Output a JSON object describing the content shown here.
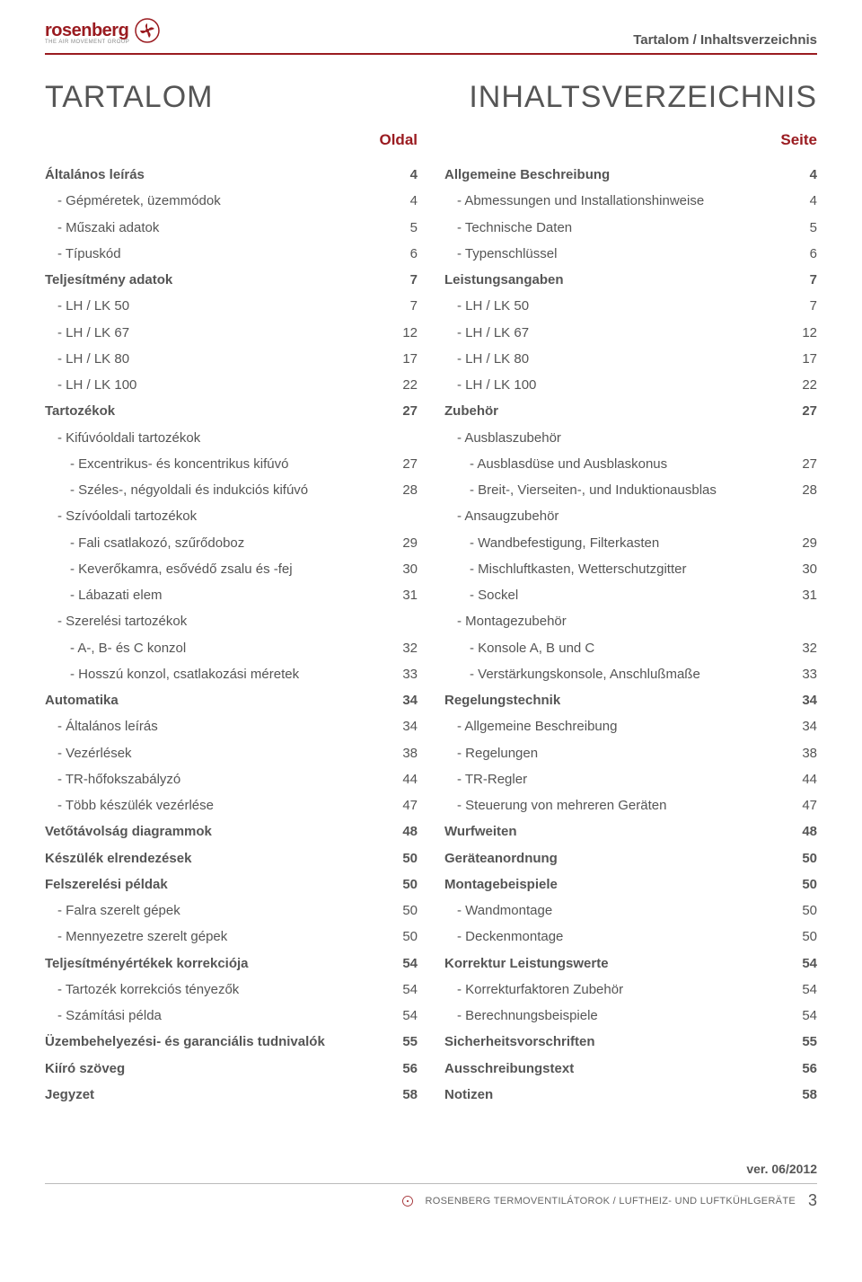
{
  "header": {
    "logo_text": "rosenberg",
    "logo_tag": "THE AIR MOVEMENT GROUP",
    "right": "Tartalom / Inhaltsverzeichnis"
  },
  "titles": {
    "left": "TARTALOM",
    "right": "INHALTSVERZEICHNIS"
  },
  "col_headers": {
    "left": "Oldal",
    "right": "Seite"
  },
  "left_rows": [
    {
      "label": "Általános leírás",
      "page": "4",
      "bold": true,
      "indent": 0
    },
    {
      "label": "- Gépméretek, üzemmódok",
      "page": "4",
      "bold": false,
      "indent": 1
    },
    {
      "label": "- Műszaki adatok",
      "page": "5",
      "bold": false,
      "indent": 1
    },
    {
      "label": "- Típuskód",
      "page": "6",
      "bold": false,
      "indent": 1
    },
    {
      "label": "Teljesítmény adatok",
      "page": "7",
      "bold": true,
      "indent": 0
    },
    {
      "label": "- LH / LK 50",
      "page": "7",
      "bold": false,
      "indent": 1
    },
    {
      "label": "- LH / LK 67",
      "page": "12",
      "bold": false,
      "indent": 1
    },
    {
      "label": "- LH / LK 80",
      "page": "17",
      "bold": false,
      "indent": 1
    },
    {
      "label": "- LH / LK 100",
      "page": "22",
      "bold": false,
      "indent": 1
    },
    {
      "label": "Tartozékok",
      "page": "27",
      "bold": true,
      "indent": 0
    },
    {
      "label": "- Kifúvóoldali tartozékok",
      "page": "",
      "bold": false,
      "indent": 1
    },
    {
      "label": "- Excentrikus- és koncentrikus kifúvó",
      "page": "27",
      "bold": false,
      "indent": 2
    },
    {
      "label": "- Széles-, négyoldali és indukciós kifúvó",
      "page": "28",
      "bold": false,
      "indent": 2
    },
    {
      "label": "- Szívóoldali tartozékok",
      "page": "",
      "bold": false,
      "indent": 1
    },
    {
      "label": "- Fali csatlakozó, szűrődoboz",
      "page": "29",
      "bold": false,
      "indent": 2
    },
    {
      "label": "- Keverőkamra, esővédő zsalu és -fej",
      "page": "30",
      "bold": false,
      "indent": 2
    },
    {
      "label": "- Lábazati elem",
      "page": "31",
      "bold": false,
      "indent": 2
    },
    {
      "label": "- Szerelési tartozékok",
      "page": "",
      "bold": false,
      "indent": 1
    },
    {
      "label": "- A-, B- és C konzol",
      "page": "32",
      "bold": false,
      "indent": 2
    },
    {
      "label": "- Hosszú konzol, csatlakozási méretek",
      "page": "33",
      "bold": false,
      "indent": 2
    },
    {
      "label": "Automatika",
      "page": "34",
      "bold": true,
      "indent": 0
    },
    {
      "label": "- Általános leírás",
      "page": "34",
      "bold": false,
      "indent": 1
    },
    {
      "label": "- Vezérlések",
      "page": "38",
      "bold": false,
      "indent": 1
    },
    {
      "label": "- TR-hőfokszabályzó",
      "page": "44",
      "bold": false,
      "indent": 1
    },
    {
      "label": "- Több készülék vezérlése",
      "page": "47",
      "bold": false,
      "indent": 1
    },
    {
      "label": "Vetőtávolság diagrammok",
      "page": "48",
      "bold": true,
      "indent": 0
    },
    {
      "label": "Készülék elrendezések",
      "page": "50",
      "bold": true,
      "indent": 0
    },
    {
      "label": "Felszerelési példak",
      "page": "50",
      "bold": true,
      "indent": 0
    },
    {
      "label": "- Falra szerelt gépek",
      "page": "50",
      "bold": false,
      "indent": 1
    },
    {
      "label": "- Mennyezetre szerelt gépek",
      "page": "50",
      "bold": false,
      "indent": 1
    },
    {
      "label": "Teljesítményértékek korrekciója",
      "page": "54",
      "bold": true,
      "indent": 0
    },
    {
      "label": "- Tartozék korrekciós tényezők",
      "page": "54",
      "bold": false,
      "indent": 1
    },
    {
      "label": "- Számítási példa",
      "page": "54",
      "bold": false,
      "indent": 1
    },
    {
      "label": "Üzembehelyezési- és garanciális tudnivalók",
      "page": "55",
      "bold": true,
      "indent": 0
    },
    {
      "label": "Kiíró szöveg",
      "page": "56",
      "bold": true,
      "indent": 0
    },
    {
      "label": "Jegyzet",
      "page": "58",
      "bold": true,
      "indent": 0
    }
  ],
  "right_rows": [
    {
      "label": "Allgemeine Beschreibung",
      "page": "4",
      "bold": true,
      "indent": 0
    },
    {
      "label": "- Abmessungen und Installationshinweise",
      "page": "4",
      "bold": false,
      "indent": 1
    },
    {
      "label": "- Technische Daten",
      "page": "5",
      "bold": false,
      "indent": 1
    },
    {
      "label": "- Typenschlüssel",
      "page": "6",
      "bold": false,
      "indent": 1
    },
    {
      "label": "Leistungsangaben",
      "page": "7",
      "bold": true,
      "indent": 0
    },
    {
      "label": "- LH / LK 50",
      "page": "7",
      "bold": false,
      "indent": 1
    },
    {
      "label": "- LH / LK 67",
      "page": "12",
      "bold": false,
      "indent": 1
    },
    {
      "label": "- LH / LK 80",
      "page": "17",
      "bold": false,
      "indent": 1
    },
    {
      "label": "- LH / LK 100",
      "page": "22",
      "bold": false,
      "indent": 1
    },
    {
      "label": "Zubehör",
      "page": "27",
      "bold": true,
      "indent": 0
    },
    {
      "label": "- Ausblaszubehör",
      "page": "",
      "bold": false,
      "indent": 1
    },
    {
      "label": "- Ausblasdüse und Ausblaskonus",
      "page": "27",
      "bold": false,
      "indent": 2
    },
    {
      "label": "- Breit-, Vierseiten-, und Induktionausblas",
      "page": "28",
      "bold": false,
      "indent": 2
    },
    {
      "label": "- Ansaugzubehör",
      "page": "",
      "bold": false,
      "indent": 1
    },
    {
      "label": "- Wandbefestigung, Filterkasten",
      "page": "29",
      "bold": false,
      "indent": 2
    },
    {
      "label": "- Mischluftkasten, Wetterschutzgitter",
      "page": "30",
      "bold": false,
      "indent": 2
    },
    {
      "label": "- Sockel",
      "page": "31",
      "bold": false,
      "indent": 2
    },
    {
      "label": "- Montagezubehör",
      "page": "",
      "bold": false,
      "indent": 1
    },
    {
      "label": "- Konsole A, B und C",
      "page": "32",
      "bold": false,
      "indent": 2
    },
    {
      "label": "- Verstärkungskonsole, Anschlußmaße",
      "page": "33",
      "bold": false,
      "indent": 2
    },
    {
      "label": "Regelungstechnik",
      "page": "34",
      "bold": true,
      "indent": 0
    },
    {
      "label": "- Allgemeine Beschreibung",
      "page": "34",
      "bold": false,
      "indent": 1
    },
    {
      "label": "- Regelungen",
      "page": "38",
      "bold": false,
      "indent": 1
    },
    {
      "label": "- TR-Regler",
      "page": "44",
      "bold": false,
      "indent": 1
    },
    {
      "label": "- Steuerung von mehreren Geräten",
      "page": "47",
      "bold": false,
      "indent": 1
    },
    {
      "label": "Wurfweiten",
      "page": "48",
      "bold": true,
      "indent": 0
    },
    {
      "label": "Geräteanordnung",
      "page": "50",
      "bold": true,
      "indent": 0
    },
    {
      "label": "Montagebeispiele",
      "page": "50",
      "bold": true,
      "indent": 0
    },
    {
      "label": "- Wandmontage",
      "page": "50",
      "bold": false,
      "indent": 1
    },
    {
      "label": "- Deckenmontage",
      "page": "50",
      "bold": false,
      "indent": 1
    },
    {
      "label": "Korrektur Leistungswerte",
      "page": "54",
      "bold": true,
      "indent": 0
    },
    {
      "label": "- Korrekturfaktoren Zubehör",
      "page": "54",
      "bold": false,
      "indent": 1
    },
    {
      "label": "- Berechnungsbeispiele",
      "page": "54",
      "bold": false,
      "indent": 1
    },
    {
      "label": "Sicherheitsvorschriften",
      "page": "55",
      "bold": true,
      "indent": 0
    },
    {
      "label": "Ausschreibungstext",
      "page": "56",
      "bold": true,
      "indent": 0
    },
    {
      "label": "Notizen",
      "page": "58",
      "bold": true,
      "indent": 0
    }
  ],
  "footer": {
    "version": "ver. 06/2012",
    "text": "ROSENBERG TERMOVENTILÁTOROK / LUFTHEIZ- UND LUFTKÜHLGERÄTE",
    "page_num": "3"
  }
}
